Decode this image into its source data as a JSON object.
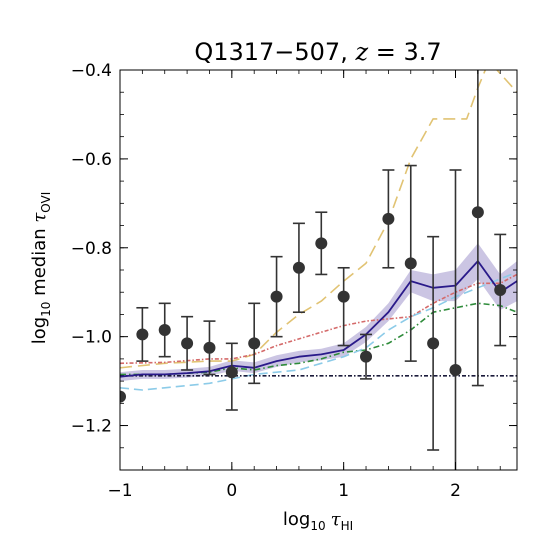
{
  "chart_data": {
    "type": "line",
    "title": {
      "text": "Q1317−507, ",
      "z_var": "z",
      "z_rest": " = 3.7"
    },
    "xlabel": {
      "prefix": "log",
      "sub": "10",
      "tau": "τ",
      "tau_sub": "HI"
    },
    "ylabel": {
      "prefix": "log",
      "sub": "10",
      "mid": " median ",
      "tau": "τ",
      "tau_sub": "OVI"
    },
    "xlim": [
      -1.0,
      2.55
    ],
    "ylim": [
      -1.3,
      -0.4
    ],
    "xticks": [
      -1,
      0,
      1,
      2
    ],
    "xtick_labels": [
      "−1",
      "0",
      "1",
      "2"
    ],
    "yticks": [
      -1.2,
      -1.0,
      -0.8,
      -0.6,
      -0.4
    ],
    "ytick_labels": [
      "−1.2",
      "−1.0",
      "−0.8",
      "−0.6",
      "−0.4"
    ],
    "colors": {
      "data": "#333333",
      "model": "#2a1a8a",
      "band": "#b9b1da",
      "gold": "#e1c373",
      "red": "#d46a6a",
      "green": "#2e8b3a",
      "cyan": "#8ccbe8",
      "black": "#1a1a3a"
    },
    "data_points": {
      "x": [
        -1.0,
        -0.8,
        -0.6,
        -0.4,
        -0.2,
        0.0,
        0.2,
        0.4,
        0.6,
        0.8,
        1.0,
        1.2,
        1.4,
        1.6,
        1.8,
        2.0,
        2.2,
        2.4
      ],
      "y": [
        -1.135,
        -0.995,
        -0.985,
        -1.015,
        -1.025,
        -1.08,
        -1.015,
        -0.91,
        -0.845,
        -0.79,
        -0.91,
        -1.045,
        -0.735,
        -0.835,
        -1.015,
        -1.075,
        -0.72,
        -0.895
      ],
      "yerr_low": [
        0.0,
        0.06,
        0.06,
        0.06,
        0.06,
        0.085,
        0.09,
        0.09,
        0.1,
        0.07,
        0.11,
        0.05,
        0.11,
        0.22,
        0.24,
        0.27,
        0.39,
        0.125
      ],
      "yerr_high": [
        0.0,
        0.06,
        0.06,
        0.06,
        0.06,
        0.065,
        0.09,
        0.09,
        0.1,
        0.07,
        0.065,
        0.05,
        0.11,
        0.22,
        0.24,
        0.45,
        0.39,
        0.125
      ]
    },
    "series": [
      {
        "style": "solid",
        "color_key": "model",
        "x": [
          -1.0,
          -0.8,
          -0.6,
          -0.4,
          -0.2,
          0.0,
          0.2,
          0.4,
          0.6,
          0.8,
          1.0,
          1.2,
          1.4,
          1.6,
          1.8,
          2.0,
          2.2,
          2.4,
          2.55
        ],
        "y": [
          -1.09,
          -1.085,
          -1.085,
          -1.082,
          -1.078,
          -1.065,
          -1.07,
          -1.055,
          -1.045,
          -1.04,
          -1.03,
          -0.995,
          -0.945,
          -0.875,
          -0.89,
          -0.885,
          -0.83,
          -0.9,
          -0.875
        ],
        "band_low": [
          -1.1,
          -1.095,
          -1.095,
          -1.092,
          -1.088,
          -1.077,
          -1.082,
          -1.068,
          -1.058,
          -1.053,
          -1.045,
          -1.012,
          -0.965,
          -0.9,
          -0.92,
          -0.92,
          -0.87,
          -0.94,
          -0.92
        ],
        "band_high": [
          -1.08,
          -1.075,
          -1.075,
          -1.072,
          -1.068,
          -1.053,
          -1.058,
          -1.042,
          -1.032,
          -1.027,
          -1.015,
          -0.978,
          -0.925,
          -0.85,
          -0.86,
          -0.85,
          -0.79,
          -0.86,
          -0.83
        ]
      },
      {
        "style": "dash-long",
        "color_key": "gold",
        "x": [
          -1.0,
          -0.6,
          -0.2,
          0.0,
          0.2,
          0.4,
          0.6,
          0.8,
          1.0,
          1.2,
          1.4,
          1.6,
          1.8,
          2.0,
          2.1,
          2.2,
          2.3,
          2.55
        ],
        "y": [
          -1.07,
          -1.06,
          -1.055,
          -1.055,
          -1.04,
          -0.99,
          -0.95,
          -0.92,
          -0.875,
          -0.835,
          -0.74,
          -0.6,
          -0.51,
          -0.51,
          -0.51,
          -0.44,
          -0.38,
          -0.45
        ]
      },
      {
        "style": "dashdot-dense",
        "color_key": "red",
        "x": [
          -1.0,
          -0.6,
          -0.2,
          0.0,
          0.2,
          0.4,
          0.6,
          0.8,
          1.0,
          1.2,
          1.4,
          1.6,
          1.8,
          2.0,
          2.2,
          2.4,
          2.55
        ],
        "y": [
          -1.06,
          -1.058,
          -1.05,
          -1.05,
          -1.04,
          -1.02,
          -1.005,
          -0.99,
          -0.975,
          -0.965,
          -0.96,
          -0.955,
          -0.925,
          -0.9,
          -0.88,
          -0.88,
          -0.86
        ]
      },
      {
        "style": "dashdot",
        "color_key": "green",
        "x": [
          -1.0,
          -0.6,
          -0.2,
          0.0,
          0.2,
          0.4,
          0.6,
          0.8,
          1.0,
          1.2,
          1.4,
          1.6,
          1.8,
          2.0,
          2.2,
          2.4,
          2.55
        ],
        "y": [
          -1.085,
          -1.085,
          -1.08,
          -1.07,
          -1.075,
          -1.065,
          -1.06,
          -1.05,
          -1.035,
          -1.03,
          -1.015,
          -0.985,
          -0.945,
          -0.935,
          -0.925,
          -0.93,
          -0.945
        ]
      },
      {
        "style": "dash",
        "color_key": "cyan",
        "x": [
          -1.0,
          -0.8,
          -0.6,
          -0.4,
          -0.2,
          0.0,
          0.2,
          0.4,
          0.6,
          0.8,
          1.0,
          1.2,
          1.4,
          1.6,
          1.8,
          2.0,
          2.2,
          2.4,
          2.55
        ],
        "y": [
          -1.115,
          -1.12,
          -1.115,
          -1.11,
          -1.105,
          -1.095,
          -1.085,
          -1.08,
          -1.075,
          -1.06,
          -1.045,
          -1.025,
          -0.985,
          -0.955,
          -0.935,
          -0.91,
          -0.89,
          -0.87,
          -0.855
        ]
      },
      {
        "style": "dashdot-dense",
        "color_key": "black",
        "x": [
          -1.0,
          2.55
        ],
        "y": [
          -1.088,
          -1.088
        ]
      }
    ]
  }
}
